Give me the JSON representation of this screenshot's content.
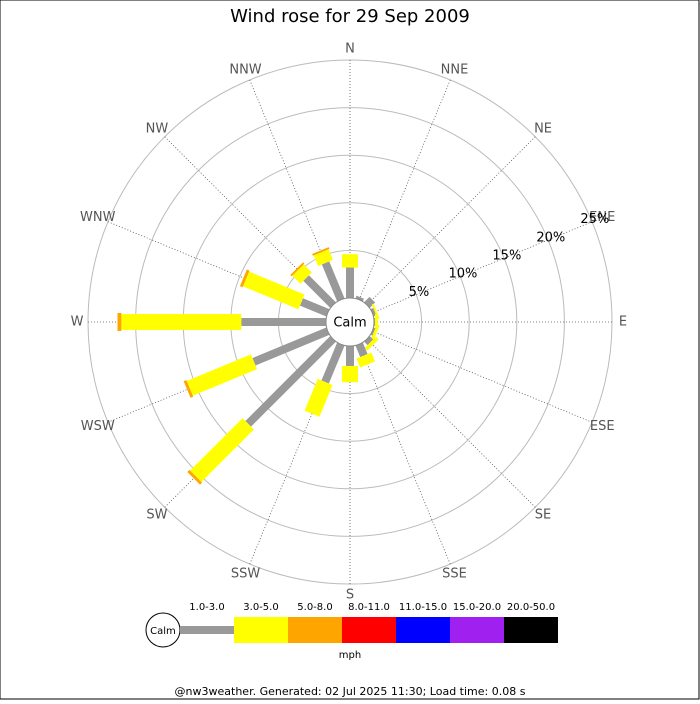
{
  "chart_data": {
    "type": "windrose",
    "title": "Wind rose for 29 Sep 2009",
    "calm_label": "Calm",
    "unit_label": "mph",
    "footer": "@nw3weather. Generated: 02 Jul 2025 11:30; Load time: 0.08 s",
    "categories": [
      "N",
      "NNE",
      "NE",
      "ENE",
      "E",
      "ESE",
      "SE",
      "SSE",
      "S",
      "SSW",
      "SW",
      "WSW",
      "W",
      "WNW",
      "NW",
      "NNW"
    ],
    "rlim": [
      0,
      25
    ],
    "rticks": [
      {
        "value": 5,
        "label": "5%"
      },
      {
        "value": 10,
        "label": "10%"
      },
      {
        "value": 15,
        "label": "15%"
      },
      {
        "value": 20,
        "label": "20%"
      },
      {
        "value": 25,
        "label": "25%"
      }
    ],
    "series": [
      {
        "name": "1.0-3.0",
        "color": "#999999",
        "values": [
          3.2,
          0.3,
          0.8,
          0.3,
          0.1,
          0.2,
          0.5,
          1.3,
          2.1,
          4.3,
          12.6,
          8.4,
          8.9,
          3.0,
          4.0,
          4.2
        ]
      },
      {
        "name": "3.0-5.0",
        "color": "#ffff00",
        "values": [
          1.4,
          0,
          0,
          0.2,
          0.3,
          0.3,
          0.4,
          1.0,
          1.7,
          3.6,
          7.8,
          7.3,
          12.6,
          6.3,
          1.2,
          1.2
        ]
      },
      {
        "name": "5.0-8.0",
        "color": "#ffa500",
        "values": [
          0,
          0,
          0,
          0,
          0,
          0,
          0,
          0,
          0,
          0,
          0.3,
          0.3,
          0.4,
          0.3,
          0.2,
          0.2
        ]
      },
      {
        "name": "8.0-11.0",
        "color": "#ff0000",
        "values": [
          0,
          0,
          0,
          0,
          0,
          0,
          0,
          0,
          0,
          0,
          0,
          0,
          0,
          0,
          0,
          0
        ]
      },
      {
        "name": "11.0-15.0",
        "color": "#0000ff",
        "values": [
          0,
          0,
          0,
          0,
          0,
          0,
          0,
          0,
          0,
          0,
          0,
          0,
          0,
          0,
          0,
          0
        ]
      },
      {
        "name": "15.0-20.0",
        "color": "#a020f0",
        "values": [
          0,
          0,
          0,
          0,
          0,
          0,
          0,
          0,
          0,
          0,
          0,
          0,
          0,
          0,
          0,
          0
        ]
      },
      {
        "name": "20.0-50.0",
        "color": "#000000",
        "values": [
          0,
          0,
          0,
          0,
          0,
          0,
          0,
          0,
          0,
          0,
          0,
          0,
          0,
          0,
          0,
          0
        ]
      }
    ]
  }
}
